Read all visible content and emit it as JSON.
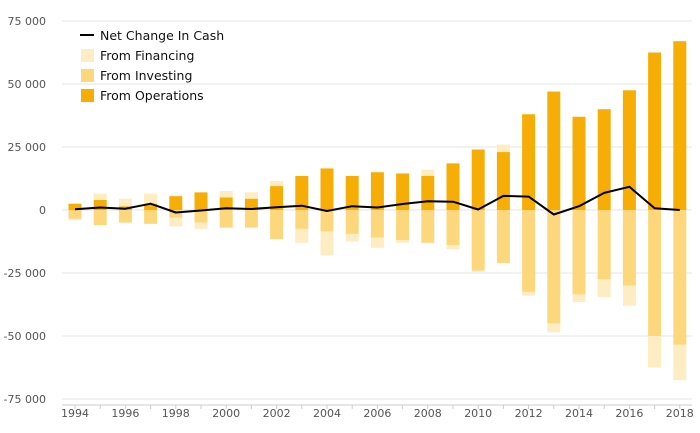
{
  "chart_data": {
    "type": "bar",
    "stacked": true,
    "x": [
      1994,
      1995,
      1996,
      1997,
      1998,
      1999,
      2000,
      2001,
      2002,
      2003,
      2004,
      2005,
      2006,
      2007,
      2008,
      2009,
      2010,
      2011,
      2012,
      2013,
      2014,
      2015,
      2016,
      2017,
      2018
    ],
    "xticks": [
      "1994",
      "1996",
      "1998",
      "2000",
      "2002",
      "2004",
      "2006",
      "2008",
      "2010",
      "2012",
      "2014",
      "2016",
      "2018"
    ],
    "yticks": [
      "75 000",
      "50 000",
      "25 000",
      "0",
      "-25 000",
      "-50 000",
      "-75 000"
    ],
    "ylim": [
      -75000,
      75000
    ],
    "grid": true,
    "legend_position": "top-left",
    "series": [
      {
        "name": "From Operations",
        "color": "#f6ae07",
        "values": [
          2500,
          4000,
          1500,
          2500,
          5500,
          7000,
          5000,
          4500,
          9500,
          13500,
          16500,
          13500,
          15000,
          14500,
          13500,
          18500,
          24000,
          23000,
          38000,
          47000,
          37000,
          40000,
          47500,
          62500,
          67000
        ]
      },
      {
        "name": "From Investing",
        "color": "#fdd77c",
        "values": [
          -3500,
          -6000,
          -5000,
          -5500,
          -3000,
          -5000,
          -7000,
          -7000,
          -11500,
          -7500,
          -8500,
          -9500,
          -11000,
          -12000,
          -13000,
          -14000,
          -24000,
          -21000,
          -32500,
          -45000,
          -33500,
          -27500,
          -30000,
          -50000,
          -53500
        ]
      },
      {
        "name": "From Financing",
        "color": "#feecc2",
        "values": [
          -500,
          2500,
          3000,
          4000,
          -3500,
          -2500,
          2500,
          2500,
          2000,
          -5500,
          -9500,
          -3000,
          -4000,
          -1000,
          2500,
          -1500,
          -500,
          3000,
          -1500,
          -3500,
          -3000,
          -7000,
          -8000,
          -12500,
          -14000
        ]
      },
      {
        "name": "Net Change In Cash",
        "color": "#000000",
        "type": "line",
        "values": [
          300,
          1000,
          500,
          2500,
          -1000,
          -200,
          700,
          400,
          1100,
          1700,
          -400,
          1500,
          1000,
          2400,
          3500,
          3300,
          200,
          5600,
          5300,
          -1800,
          1500,
          6800,
          9200,
          700,
          0
        ]
      }
    ]
  }
}
